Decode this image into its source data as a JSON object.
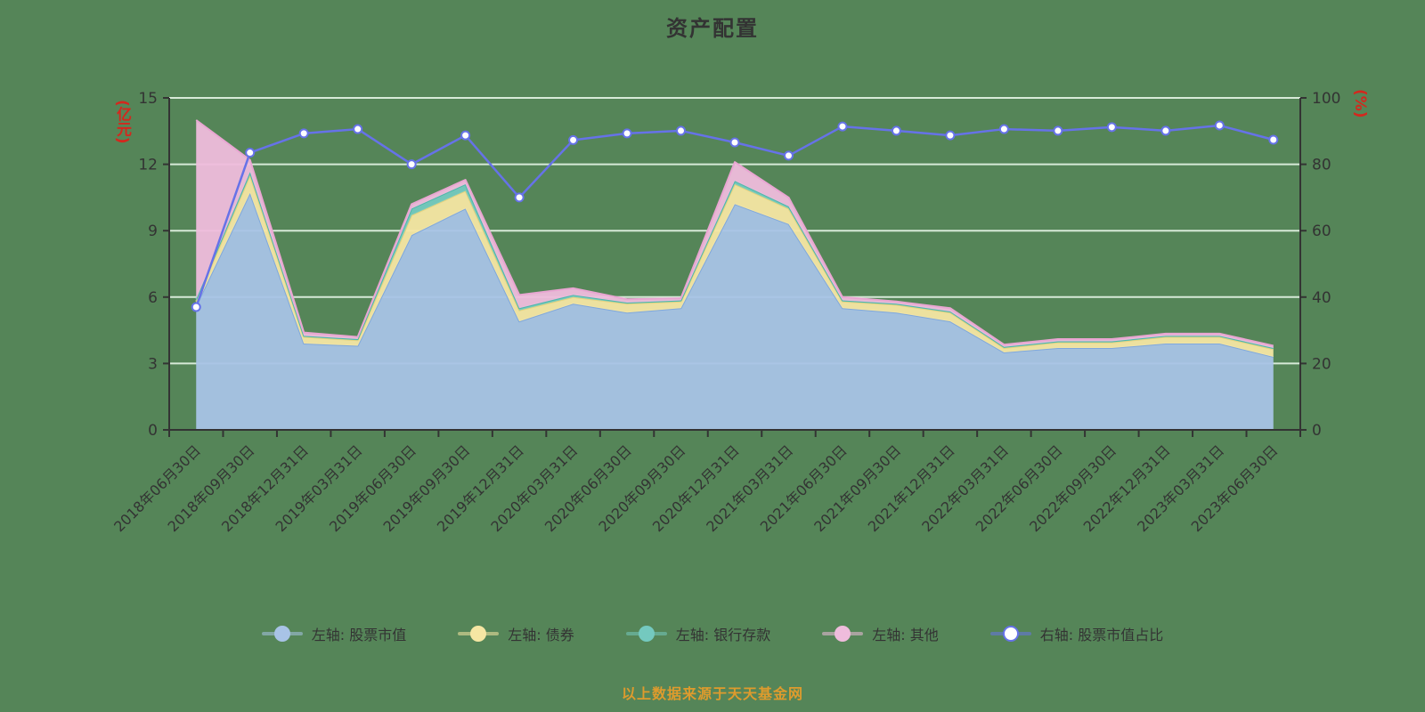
{
  "title": "资产配置",
  "axes": {
    "left_unit": "(亿元)",
    "right_unit": "(%)",
    "left_ticks": [
      0,
      3,
      6,
      9,
      12,
      15
    ],
    "right_ticks": [
      0,
      20,
      40,
      60,
      80,
      100
    ]
  },
  "watermark": "以上数据来源于天天基金网",
  "colors": {
    "background": "#558558",
    "gridline": "#d7ead7",
    "axis": "#333333",
    "axis_unit_red": "#d3281e",
    "watermark_orange": "#de9b2d"
  },
  "chart_data": {
    "type": "area",
    "title": "资产配置",
    "xlabel": "",
    "ylabel_left": "(亿元)",
    "ylabel_right": "(%)",
    "ylim_left": [
      0,
      15
    ],
    "ylim_right": [
      0,
      100
    ],
    "grid": true,
    "legend_position": "bottom",
    "x": [
      "2018年06月30日",
      "2018年09月30日",
      "2018年12月31日",
      "2019年03月31日",
      "2019年06月30日",
      "2019年09月30日",
      "2019年12月31日",
      "2020年03月31日",
      "2020年06月30日",
      "2020年09月30日",
      "2020年12月31日",
      "2021年03月31日",
      "2021年06月30日",
      "2021年09月30日",
      "2021年12月31日",
      "2022年03月31日",
      "2022年06月30日",
      "2022年09月30日",
      "2022年12月31日",
      "2023年03月31日",
      "2023年06月30日"
    ],
    "series": [
      {
        "key": "stock-value",
        "name": "左轴: 股票市值",
        "type": "area",
        "stack": true,
        "axis": "left",
        "color": "#a8c3e6",
        "edge": "#7fa8dc",
        "values": [
          5.6,
          10.7,
          3.9,
          3.8,
          8.8,
          10.0,
          4.9,
          5.7,
          5.3,
          5.5,
          10.2,
          9.3,
          5.5,
          5.3,
          4.9,
          3.5,
          3.7,
          3.7,
          3.9,
          3.9,
          3.3
        ]
      },
      {
        "key": "bond",
        "name": "左轴: 债券",
        "type": "area",
        "stack": true,
        "axis": "left",
        "color": "#f5e6a3",
        "edge": "#e6d37f",
        "values": [
          0.2,
          0.8,
          0.3,
          0.25,
          0.9,
          0.8,
          0.5,
          0.3,
          0.4,
          0.3,
          0.9,
          0.7,
          0.3,
          0.35,
          0.4,
          0.2,
          0.25,
          0.25,
          0.3,
          0.3,
          0.35
        ]
      },
      {
        "key": "bank-deposit",
        "name": "左轴: 银行存款",
        "type": "area",
        "stack": true,
        "axis": "left",
        "color": "#74c9bf",
        "edge": "#4db8aa",
        "values": [
          0.1,
          0.15,
          0.05,
          0.05,
          0.3,
          0.3,
          0.1,
          0.1,
          0.05,
          0.05,
          0.15,
          0.1,
          0.05,
          0.05,
          0.05,
          0.05,
          0.05,
          0.05,
          0.05,
          0.05,
          0.05
        ]
      },
      {
        "key": "other",
        "name": "左轴: 其他",
        "type": "area",
        "stack": true,
        "axis": "left",
        "color": "#efbcdc",
        "edge": "#e9a6d2",
        "values": [
          8.1,
          0.55,
          0.15,
          0.1,
          0.2,
          0.2,
          0.6,
          0.3,
          0.15,
          0.1,
          0.85,
          0.4,
          0.15,
          0.1,
          0.15,
          0.1,
          0.1,
          0.1,
          0.1,
          0.1,
          0.1
        ]
      },
      {
        "key": "stock-ratio",
        "name": "右轴: 股票市值占比",
        "type": "line",
        "stack": false,
        "axis": "right",
        "color": "#6672e8",
        "edge": "#6672e8",
        "marker": "hollow",
        "values": [
          37.0,
          83.5,
          89.3,
          90.6,
          80.0,
          88.7,
          70.0,
          87.3,
          89.3,
          90.1,
          86.6,
          82.6,
          91.4,
          90.1,
          88.7,
          90.6,
          90.1,
          91.2,
          90.1,
          91.7,
          87.4
        ]
      }
    ]
  }
}
